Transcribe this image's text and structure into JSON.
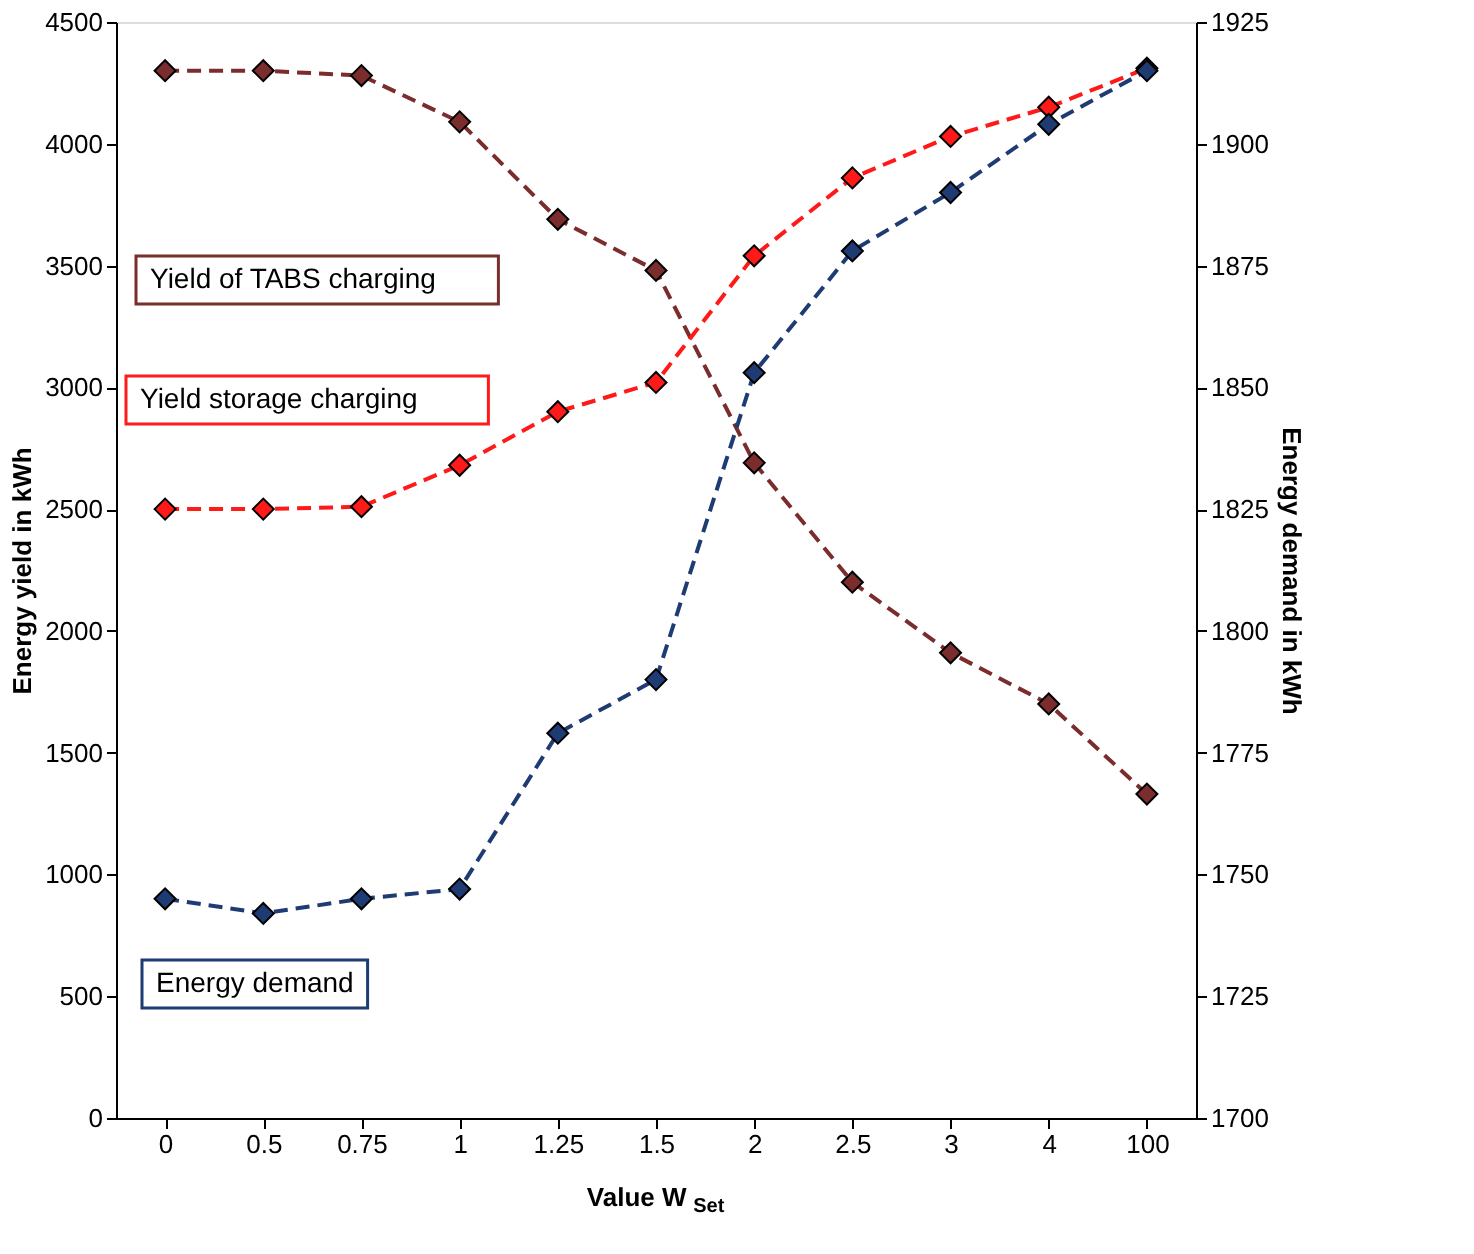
{
  "chart_data": {
    "type": "line",
    "xlabel": "Value W$_{Set}$",
    "ylabel": "Energy yield in kWh",
    "y2label": "Energy demand in kWh",
    "categories": [
      "0",
      "0.5",
      "0.75",
      "1",
      "1.25",
      "1.5",
      "2",
      "2.5",
      "3",
      "4",
      "100"
    ],
    "series": [
      {
        "name": "Yield of TABS charging",
        "color": "#7b2c2c",
        "values": [
          4300,
          4300,
          4280,
          4090,
          3690,
          3480,
          2690,
          2200,
          1910,
          1700,
          1330
        ]
      },
      {
        "name": "Yield storage charging",
        "color": "#ff1a1a",
        "values": [
          2500,
          2500,
          2510,
          2680,
          2900,
          3020,
          3540,
          3860,
          4030,
          4150,
          4310
        ]
      },
      {
        "name": "Energy demand",
        "color": "#1f3b73",
        "axis": "y2",
        "values": [
          1745,
          1742,
          1745,
          1747,
          1779,
          1790,
          1853,
          1878,
          1890,
          1904,
          1915
        ]
      }
    ],
    "ylim": [
      0,
      4500
    ],
    "yticks": [
      0,
      500,
      1000,
      1500,
      2000,
      2500,
      3000,
      3500,
      4000,
      4500
    ],
    "y2lim": [
      1700,
      1925
    ],
    "y2ticks": [
      1700,
      1725,
      1750,
      1775,
      1800,
      1825,
      1850,
      1875,
      1900,
      1925
    ],
    "marker": "diamond",
    "line_style": "dashed",
    "grid": false
  }
}
